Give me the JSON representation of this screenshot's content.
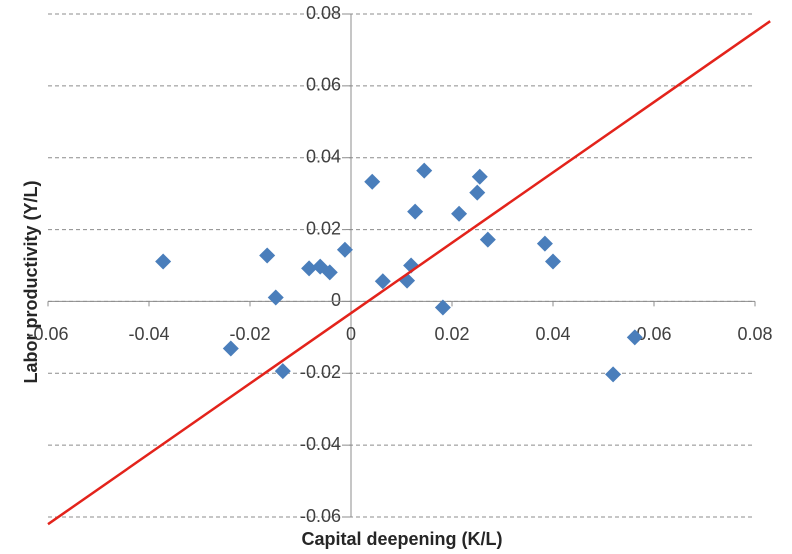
{
  "chart_data": {
    "type": "scatter",
    "x_label": "Capital deepening (K/L)",
    "y_label": "Labor productivity (Y/L)",
    "x": [
      -0.0372,
      -0.0238,
      -0.0166,
      -0.0149,
      -0.0135,
      -0.0083,
      -0.0061,
      -0.0042,
      -0.0012,
      0.0042,
      0.0063,
      0.0111,
      0.0119,
      0.0127,
      0.0145,
      0.0182,
      0.0214,
      0.025,
      0.0255,
      0.0271,
      0.0384,
      0.04,
      0.0519,
      0.0562
    ],
    "y": [
      0.0111,
      -0.0131,
      0.0128,
      0.0011,
      -0.0194,
      0.0092,
      0.0097,
      0.0081,
      0.0144,
      0.0333,
      0.0056,
      0.0058,
      0.01,
      0.025,
      0.0364,
      -0.0017,
      0.0244,
      0.0303,
      0.0347,
      0.0172,
      0.0161,
      0.0111,
      -0.0203,
      -0.01
    ],
    "color": "#4a7ebb",
    "trend_line": {
      "x": [
        -0.06,
        0.083
      ],
      "y": [
        -0.062,
        0.078
      ],
      "color": "#e3231b"
    },
    "xlim": [
      -0.06,
      0.08
    ],
    "ylim": [
      -0.06,
      0.08
    ],
    "xticks": [
      -0.06,
      -0.04,
      -0.02,
      0,
      0.02,
      0.04,
      0.06,
      0.08
    ],
    "yticks": [
      -0.06,
      -0.04,
      -0.02,
      0,
      0.02,
      0.04,
      0.06,
      0.08
    ],
    "grid": true
  }
}
